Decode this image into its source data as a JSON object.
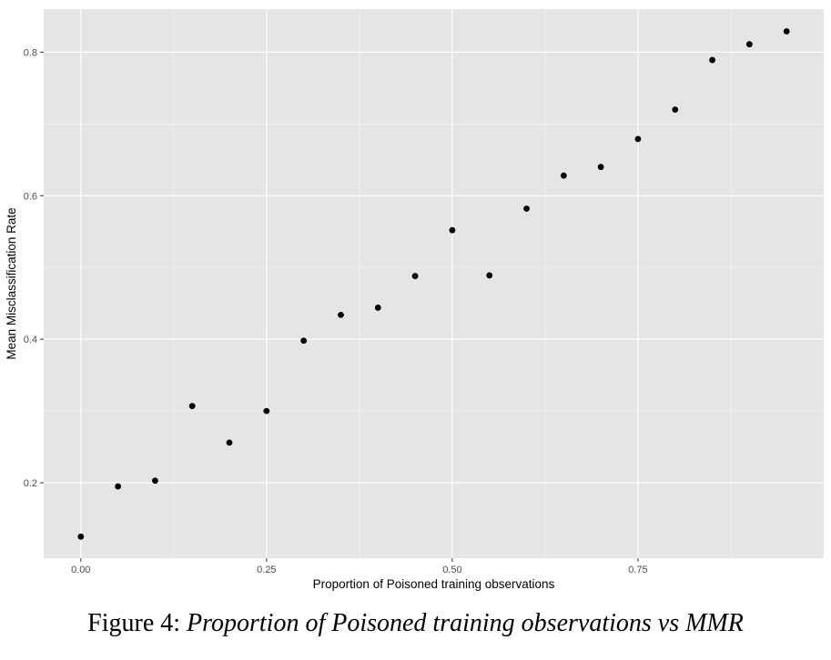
{
  "figure": {
    "caption_label": "Figure 4:",
    "caption_text": "Proportion of Poisoned training observations vs MMR"
  },
  "colors": {
    "panel_background": "#e5e5e5",
    "grid_major": "#ffffff",
    "point": "#000000"
  },
  "chart_data": {
    "type": "scatter",
    "title": "",
    "xlabel": "Proportion of Poisoned training observations",
    "ylabel": "Mean Misclassification Rate",
    "xlim": [
      -0.05,
      1.0
    ],
    "ylim": [
      0.095,
      0.86
    ],
    "xticks": [
      0.0,
      0.25,
      0.5,
      0.75
    ],
    "xtick_labels": [
      "0.00",
      "0.25",
      "0.50",
      "0.75"
    ],
    "yticks": [
      0.2,
      0.4,
      0.6,
      0.8
    ],
    "ytick_labels": [
      "0.2",
      "0.4",
      "0.6",
      "0.8"
    ],
    "grid": true,
    "x": [
      0.0,
      0.05,
      0.1,
      0.15,
      0.2,
      0.25,
      0.3,
      0.35,
      0.4,
      0.45,
      0.5,
      0.55,
      0.6,
      0.65,
      0.7,
      0.75,
      0.8,
      0.85,
      0.9,
      0.95
    ],
    "y": [
      0.125,
      0.195,
      0.203,
      0.307,
      0.256,
      0.3,
      0.398,
      0.434,
      0.444,
      0.488,
      0.552,
      0.489,
      0.582,
      0.628,
      0.64,
      0.679,
      0.72,
      0.789,
      0.811,
      0.829
    ]
  }
}
